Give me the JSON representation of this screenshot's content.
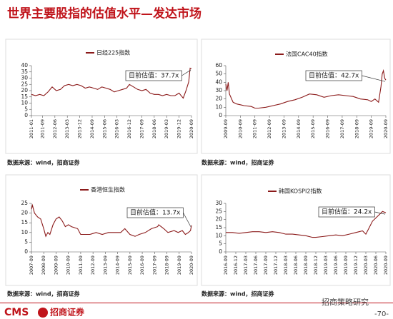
{
  "title": "世界主要股指的估值水平—发达市场",
  "chart_data": [
    {
      "type": "line",
      "legend": "日经225指数",
      "annotation": "目前估值：37.7x",
      "source": "数据来源：wind，招商证券",
      "xlim": [
        "2011-01",
        "2020-09"
      ],
      "xticks": [
        "2011-01",
        "2011-09",
        "2012-06",
        "2013-03",
        "2013-12",
        "2014-09",
        "2015-06",
        "2016-03",
        "2016-12",
        "2017-09",
        "2018-06",
        "2019-03",
        "2019-12",
        "2020-09"
      ],
      "ylim": [
        0,
        40
      ],
      "yticks": [
        0,
        5,
        10,
        15,
        20,
        25,
        30,
        35,
        40
      ],
      "series": [
        {
          "name": "日经225指数",
          "color": "#8b1a1a",
          "x": [
            "2011-01",
            "2011-04",
            "2011-07",
            "2011-10",
            "2012-01",
            "2012-04",
            "2012-07",
            "2012-10",
            "2013-01",
            "2013-04",
            "2013-07",
            "2013-10",
            "2014-01",
            "2014-04",
            "2014-07",
            "2014-10",
            "2015-01",
            "2015-04",
            "2015-07",
            "2015-10",
            "2016-01",
            "2016-04",
            "2016-07",
            "2016-10",
            "2016-12",
            "2017-03",
            "2017-06",
            "2017-09",
            "2017-12",
            "2018-03",
            "2018-06",
            "2018-09",
            "2018-12",
            "2019-03",
            "2019-06",
            "2019-09",
            "2019-12",
            "2020-03",
            "2020-05",
            "2020-07",
            "2020-08",
            "2020-09"
          ],
          "values": [
            17,
            16,
            17,
            16,
            19,
            23,
            20,
            21,
            24,
            25,
            24,
            25,
            24,
            22,
            23,
            22,
            21,
            23,
            22,
            21,
            19,
            20,
            21,
            22,
            25,
            23,
            21,
            20,
            21,
            18,
            17,
            17,
            16,
            17,
            16,
            16,
            18,
            14,
            20,
            27,
            38,
            37.7
          ]
        }
      ]
    },
    {
      "type": "line",
      "legend": "法国CAC40指数",
      "annotation": "目前估值：42.7x",
      "source": "数据来源：wind，招商证券",
      "xlim": [
        "2009-09",
        "2020-09"
      ],
      "xticks": [
        "2009-09",
        "2010-09",
        "2011-09",
        "2012-09",
        "2013-09",
        "2014-09",
        "2015-09",
        "2016-09",
        "2017-09",
        "2018-09",
        "2019-09",
        "2020-09"
      ],
      "ylim": [
        0,
        60
      ],
      "yticks": [
        0,
        10,
        20,
        30,
        40,
        50,
        60
      ],
      "series": [
        {
          "name": "法国CAC40指数",
          "color": "#8b1a1a",
          "x": [
            "2009-09",
            "2009-10",
            "2009-11",
            "2009-12",
            "2010-03",
            "2010-06",
            "2010-09",
            "2010-12",
            "2011-06",
            "2011-09",
            "2011-12",
            "2012-06",
            "2012-12",
            "2013-06",
            "2013-12",
            "2014-06",
            "2014-12",
            "2015-06",
            "2015-12",
            "2016-06",
            "2016-12",
            "2017-06",
            "2017-12",
            "2018-06",
            "2018-12",
            "2019-06",
            "2019-09",
            "2019-12",
            "2020-03",
            "2020-05",
            "2020-06",
            "2020-07",
            "2020-08",
            "2020-09"
          ],
          "values": [
            38,
            30,
            40,
            26,
            16,
            14,
            13,
            12,
            11,
            9,
            9,
            10,
            12,
            14,
            17,
            19,
            22,
            26,
            25,
            22,
            24,
            25,
            24,
            23,
            20,
            19,
            17,
            20,
            16,
            35,
            50,
            54,
            45,
            42.7
          ]
        }
      ]
    },
    {
      "type": "line",
      "legend": "香港恒生指数",
      "annotation": "目前估值：13.7x",
      "source": "数据来源：wind，招商证券",
      "xlim": [
        "2007-09",
        "2020-09"
      ],
      "xticks": [
        "2007-09",
        "2008-09",
        "2009-09",
        "2010-09",
        "2011-09",
        "2012-09",
        "2013-09",
        "2014-09",
        "2015-09",
        "2016-09",
        "2017-09",
        "2018-09",
        "2019-09",
        "2020-09"
      ],
      "ylim": [
        0,
        25
      ],
      "yticks": [
        0,
        5,
        10,
        15,
        20,
        25
      ],
      "series": [
        {
          "name": "香港恒生指数",
          "color": "#8b1a1a",
          "x": [
            "2007-09",
            "2007-10",
            "2007-12",
            "2008-03",
            "2008-06",
            "2008-09",
            "2008-11",
            "2009-01",
            "2009-03",
            "2009-06",
            "2009-09",
            "2009-12",
            "2010-03",
            "2010-06",
            "2010-09",
            "2010-12",
            "2011-06",
            "2011-09",
            "2011-12",
            "2012-06",
            "2012-12",
            "2013-06",
            "2013-12",
            "2014-06",
            "2014-12",
            "2015-04",
            "2015-09",
            "2016-02",
            "2016-06",
            "2016-12",
            "2017-06",
            "2017-12",
            "2018-01",
            "2018-06",
            "2018-10",
            "2019-04",
            "2019-08",
            "2019-12",
            "2020-03",
            "2020-06",
            "2020-08",
            "2020-09"
          ],
          "values": [
            22,
            24,
            20,
            18,
            17,
            12,
            8,
            10,
            9,
            14,
            17,
            18,
            16,
            13,
            14,
            13,
            12,
            9,
            9,
            9,
            10,
            9,
            10,
            10,
            10,
            12,
            9,
            8,
            9,
            10,
            12,
            13,
            14,
            12,
            10,
            11,
            10,
            11,
            9,
            10,
            11,
            13.7
          ]
        }
      ]
    },
    {
      "type": "line",
      "legend": "韩国KOSPI2指数",
      "annotation": "目前估值：24.2x",
      "source": "数据来源：wind，招商证券",
      "xlim": [
        "2016-09",
        "2020-09"
      ],
      "xticks": [
        "2016-09",
        "2016-12",
        "2017-03",
        "2017-06",
        "2017-09",
        "2017-12",
        "2018-03",
        "2018-06",
        "2018-09",
        "2018-12",
        "2019-03",
        "2019-06",
        "2019-09",
        "2019-12",
        "2020-03",
        "2020-06",
        "2020-09"
      ],
      "ylim": [
        0,
        30
      ],
      "yticks": [
        0,
        5,
        10,
        15,
        20,
        25,
        30
      ],
      "series": [
        {
          "name": "韩国KOSPI2指数",
          "color": "#8b1a1a",
          "x": [
            "2016-09",
            "2016-11",
            "2017-01",
            "2017-03",
            "2017-05",
            "2017-07",
            "2017-09",
            "2017-11",
            "2018-01",
            "2018-03",
            "2018-05",
            "2018-07",
            "2018-09",
            "2018-11",
            "2018-12",
            "2019-02",
            "2019-04",
            "2019-06",
            "2019-08",
            "2019-10",
            "2019-12",
            "2020-02",
            "2020-03",
            "2020-04",
            "2020-05",
            "2020-06",
            "2020-07",
            "2020-08",
            "2020-09"
          ],
          "values": [
            12,
            12,
            11.5,
            12,
            12.5,
            12.5,
            12,
            12.5,
            12,
            11,
            11,
            10.5,
            10,
            9,
            9,
            9.5,
            10,
            10.5,
            10,
            11,
            12,
            13,
            11,
            15,
            19,
            21,
            23,
            25,
            24.2
          ]
        }
      ]
    }
  ],
  "footer": {
    "logo": "CMS",
    "company": "招商证券",
    "brand": "招商策略研究",
    "page": "-70-"
  }
}
